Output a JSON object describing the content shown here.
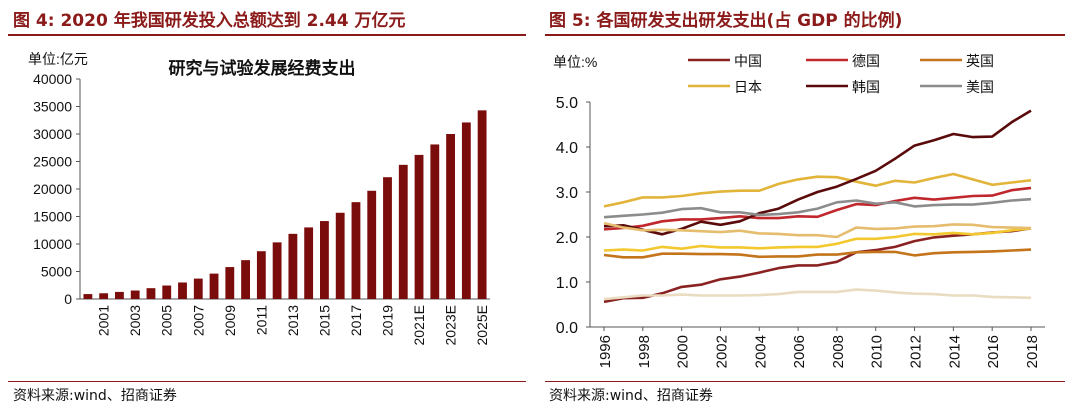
{
  "left_panel": {
    "figure_title": "图 4:  2020 年我国研发投入总额达到 2.44 万亿元",
    "source": "资料来源:wind、招商证券"
  },
  "right_panel": {
    "figure_title": "图 5:  各国研发支出研发支出(占 GDP 的比例)",
    "source": "资料来源:wind、招商证券"
  },
  "colors": {
    "title_red": "#8b1a1a",
    "bar": "#7b0c0c",
    "中国": "#8b2222",
    "德国": "#c0282d",
    "英国": "#c4741a",
    "日本": "#e2b43a",
    "韩国": "#5a0a0a",
    "美国": "#8c8c8c",
    "pale": "#e9dcc0"
  },
  "chart_data": [
    {
      "type": "bar",
      "title": "研究与试验发展经费支出",
      "ylabel": "单位:亿元",
      "xlabel": "",
      "ylim": [
        0,
        40000
      ],
      "yticks": [
        "0",
        "5000",
        "10000",
        "15000",
        "20000",
        "25000",
        "30000",
        "35000",
        "40000"
      ],
      "categories": [
        "2000",
        "2001",
        "2002",
        "2003",
        "2004",
        "2005",
        "2006",
        "2007",
        "2008",
        "2009",
        "2010",
        "2011",
        "2012",
        "2013",
        "2014",
        "2015",
        "2016",
        "2017",
        "2018",
        "2019",
        "2020",
        "2021E",
        "2022E",
        "2023E",
        "2024E",
        "2025E"
      ],
      "xtick_labels": [
        "2001",
        "2003",
        "2005",
        "2007",
        "2009",
        "2011",
        "2013",
        "2015",
        "2017",
        "2019",
        "2021E",
        "2023E",
        "2025E"
      ],
      "values": [
        896,
        1043,
        1288,
        1540,
        1966,
        2450,
        3003,
        3710,
        4616,
        5802,
        7063,
        8687,
        10298,
        11847,
        13016,
        14170,
        15677,
        17606,
        19678,
        22144,
        24393,
        26200,
        28100,
        30000,
        32100,
        34300
      ],
      "grid": false
    },
    {
      "type": "line",
      "title": "",
      "ylabel": "单位:%",
      "xlabel": "",
      "ylim": [
        0.0,
        5.0
      ],
      "yticks": [
        "0.0",
        "1.0",
        "2.0",
        "3.0",
        "4.0",
        "5.0"
      ],
      "x": [
        1996,
        1997,
        1998,
        1999,
        2000,
        2001,
        2002,
        2003,
        2004,
        2005,
        2006,
        2007,
        2008,
        2009,
        2010,
        2011,
        2012,
        2013,
        2014,
        2015,
        2016,
        2017,
        2018
      ],
      "xtick_labels": [
        "1996",
        "1998",
        "2000",
        "2002",
        "2004",
        "2006",
        "2008",
        "2010",
        "2012",
        "2014",
        "2016",
        "2018"
      ],
      "legend_position": "top",
      "series": [
        {
          "name": "中国",
          "in_legend": true,
          "values": [
            0.56,
            0.64,
            0.65,
            0.75,
            0.89,
            0.94,
            1.06,
            1.12,
            1.21,
            1.31,
            1.37,
            1.37,
            1.45,
            1.66,
            1.71,
            1.78,
            1.91,
            1.99,
            2.03,
            2.06,
            2.1,
            2.13,
            2.19
          ]
        },
        {
          "name": "德国",
          "in_legend": true,
          "values": [
            2.17,
            2.2,
            2.25,
            2.35,
            2.39,
            2.39,
            2.42,
            2.46,
            2.42,
            2.42,
            2.46,
            2.45,
            2.6,
            2.73,
            2.71,
            2.8,
            2.87,
            2.83,
            2.87,
            2.91,
            2.92,
            3.04,
            3.09
          ]
        },
        {
          "name": "英国",
          "in_legend": true,
          "values": [
            1.6,
            1.55,
            1.55,
            1.63,
            1.63,
            1.62,
            1.62,
            1.61,
            1.56,
            1.57,
            1.57,
            1.61,
            1.61,
            1.66,
            1.67,
            1.67,
            1.59,
            1.64,
            1.66,
            1.67,
            1.68,
            1.7,
            1.72
          ]
        },
        {
          "name": "日本",
          "in_legend": true,
          "values": [
            2.68,
            2.77,
            2.88,
            2.88,
            2.91,
            2.97,
            3.01,
            3.03,
            3.03,
            3.18,
            3.28,
            3.34,
            3.33,
            3.23,
            3.14,
            3.25,
            3.21,
            3.31,
            3.4,
            3.28,
            3.16,
            3.21,
            3.26
          ]
        },
        {
          "name": "韩国",
          "in_legend": true,
          "values": [
            2.24,
            2.26,
            2.16,
            2.06,
            2.18,
            2.34,
            2.27,
            2.35,
            2.53,
            2.63,
            2.83,
            3.0,
            3.12,
            3.29,
            3.47,
            3.74,
            4.03,
            4.15,
            4.29,
            4.22,
            4.23,
            4.55,
            4.81
          ]
        },
        {
          "name": "美国",
          "in_legend": true,
          "values": [
            2.44,
            2.47,
            2.5,
            2.54,
            2.62,
            2.64,
            2.55,
            2.55,
            2.49,
            2.51,
            2.55,
            2.63,
            2.77,
            2.81,
            2.74,
            2.77,
            2.68,
            2.71,
            2.72,
            2.72,
            2.76,
            2.81,
            2.84
          ]
        },
        {
          "name": "",
          "in_legend": false,
          "color": "#f3c82f",
          "values": [
            1.7,
            1.72,
            1.7,
            1.78,
            1.74,
            1.8,
            1.77,
            1.77,
            1.75,
            1.77,
            1.78,
            1.78,
            1.85,
            1.96,
            1.96,
            2.0,
            2.07,
            2.06,
            2.09,
            2.06,
            2.09,
            2.15,
            2.19
          ]
        },
        {
          "name": "",
          "in_legend": false,
          "color": "#e6bc6e",
          "values": [
            2.31,
            2.21,
            2.15,
            2.16,
            2.15,
            2.13,
            2.11,
            2.14,
            2.08,
            2.07,
            2.04,
            2.04,
            2.0,
            2.21,
            2.18,
            2.19,
            2.23,
            2.24,
            2.28,
            2.27,
            2.22,
            2.21,
            2.2
          ]
        },
        {
          "name": "",
          "in_legend": false,
          "color": "#e9dcc0",
          "values": [
            0.62,
            0.66,
            0.7,
            0.7,
            0.72,
            0.7,
            0.7,
            0.7,
            0.71,
            0.73,
            0.78,
            0.78,
            0.78,
            0.83,
            0.81,
            0.77,
            0.74,
            0.73,
            0.7,
            0.7,
            0.67,
            0.66,
            0.65
          ]
        }
      ],
      "grid": false
    }
  ]
}
